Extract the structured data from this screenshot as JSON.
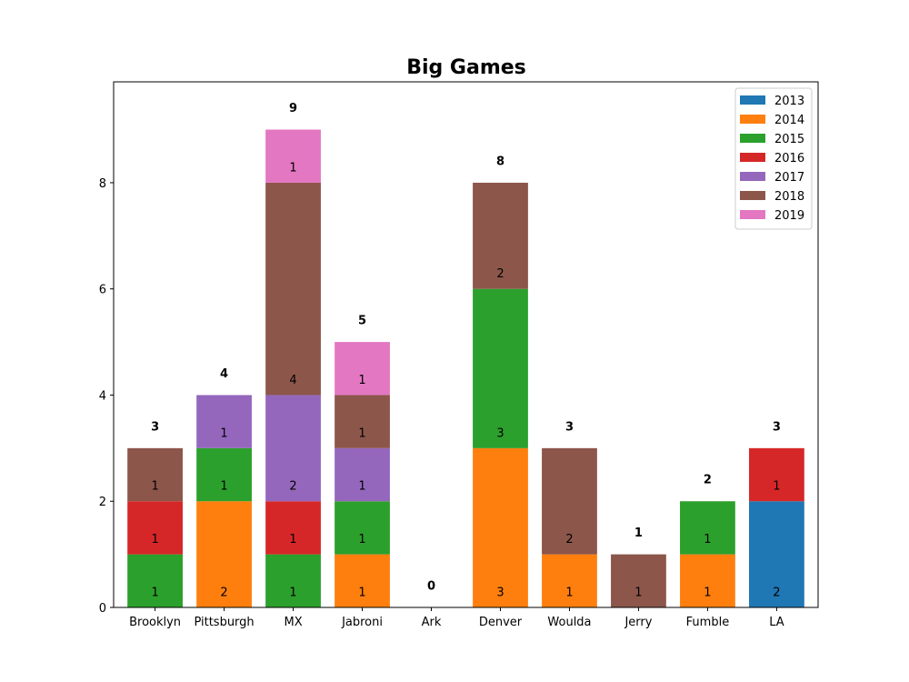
{
  "chart_data": {
    "type": "bar",
    "stacked": true,
    "title": "Big Games",
    "xlabel": "",
    "ylabel": "",
    "ylim": [
      0,
      9.9
    ],
    "yticks": [
      0,
      2,
      4,
      6,
      8
    ],
    "legend_position": "top-right",
    "categories": [
      "Brooklyn",
      "Pittsburgh",
      "MX",
      "Jabroni",
      "Ark",
      "Denver",
      "Woulda",
      "Jerry",
      "Fumble",
      "LA"
    ],
    "totals": [
      3,
      4,
      9,
      5,
      0,
      8,
      3,
      1,
      2,
      3
    ],
    "series": [
      {
        "name": "2013",
        "color": "#1f77b4",
        "values": [
          0,
          0,
          0,
          0,
          0,
          0,
          0,
          0,
          0,
          2
        ]
      },
      {
        "name": "2014",
        "color": "#ff7f0e",
        "values": [
          0,
          2,
          0,
          1,
          0,
          3,
          1,
          0,
          1,
          0
        ]
      },
      {
        "name": "2015",
        "color": "#2ca02c",
        "values": [
          1,
          1,
          1,
          1,
          0,
          3,
          0,
          0,
          1,
          0
        ]
      },
      {
        "name": "2016",
        "color": "#d62728",
        "values": [
          1,
          0,
          1,
          0,
          0,
          0,
          0,
          0,
          0,
          1
        ]
      },
      {
        "name": "2017",
        "color": "#9467bd",
        "values": [
          0,
          1,
          2,
          1,
          0,
          0,
          0,
          0,
          0,
          0
        ]
      },
      {
        "name": "2018",
        "color": "#8c564b",
        "values": [
          1,
          0,
          4,
          1,
          0,
          2,
          2,
          1,
          0,
          0
        ]
      },
      {
        "name": "2019",
        "color": "#e377c2",
        "values": [
          0,
          0,
          1,
          1,
          0,
          0,
          0,
          0,
          0,
          0
        ]
      }
    ]
  }
}
